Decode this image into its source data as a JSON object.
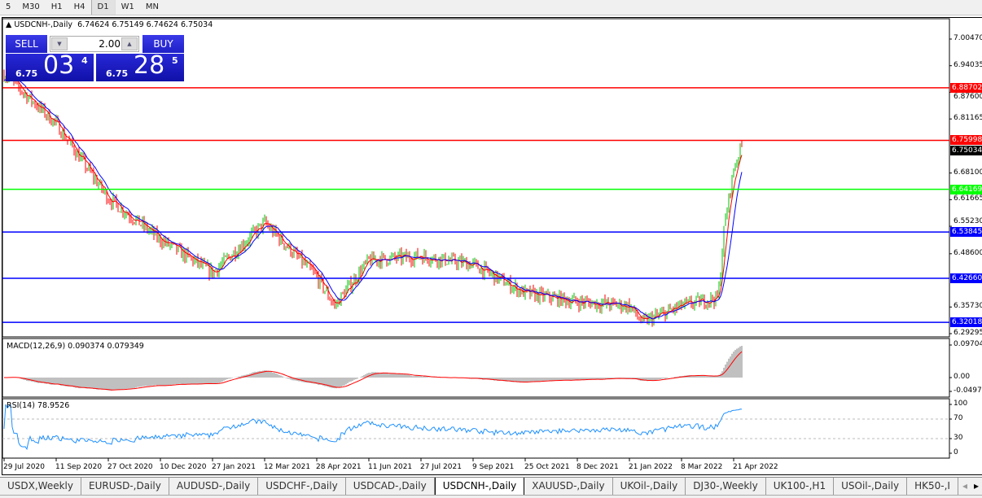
{
  "timeframes": [
    "5",
    "M30",
    "H1",
    "H4",
    "D1",
    "W1",
    "MN"
  ],
  "active_timeframe": "D1",
  "chart": {
    "title": "USDCNH-,Daily",
    "ohlc": "6.74624 6.75149 6.74624 6.75034"
  },
  "one_click": {
    "sell": "SELL",
    "buy": "BUY",
    "lot": "2.00",
    "sell_price": {
      "prefix": "6.75",
      "big": "03",
      "sup": "4"
    },
    "buy_price": {
      "prefix": "6.75",
      "big": "28",
      "sup": "5"
    }
  },
  "price_scale": [
    "7.00470",
    "6.94035",
    "6.87600",
    "6.81165",
    "6.68100",
    "6.61665",
    "6.55230",
    "6.48600",
    "6.35730",
    "6.29295"
  ],
  "current_price": "6.75034",
  "hlines": [
    {
      "price": "6.88702",
      "color": "#ff0000"
    },
    {
      "price": "6.75998",
      "color": "#ff0000"
    },
    {
      "price": "6.64169",
      "color": "#00ff00"
    },
    {
      "price": "6.53845",
      "color": "#0000ff"
    },
    {
      "price": "6.42660",
      "color": "#0000ff"
    },
    {
      "price": "6.32018",
      "color": "#0000ff"
    }
  ],
  "macd": {
    "label": "MACD(12,26,9) 0.090374 0.079349",
    "scale": [
      "0.097045",
      "0.00",
      "-0.04972"
    ]
  },
  "rsi": {
    "label": "RSI(14) 78.9526",
    "scale": [
      "100",
      "70",
      "30",
      "0"
    ]
  },
  "x_labels": [
    "29 Jul 2020",
    "11 Sep 2020",
    "27 Oct 2020",
    "10 Dec 2020",
    "27 Jan 2021",
    "12 Mar 2021",
    "28 Apr 2021",
    "11 Jun 2021",
    "27 Jul 2021",
    "9 Sep 2021",
    "25 Oct 2021",
    "8 Dec 2021",
    "21 Jan 2022",
    "8 Mar 2022",
    "21 Apr 2022"
  ],
  "chart_data": {
    "type": "candlestick",
    "approx_close": [
      [
        "29 Jul 2020",
        6.92
      ],
      [
        "11 Sep 2020",
        6.8
      ],
      [
        "27 Oct 2020",
        6.62
      ],
      [
        "10 Dec 2020",
        6.52
      ],
      [
        "27 Jan 2021",
        6.44
      ],
      [
        "12 Mar 2021",
        6.56
      ],
      [
        "28 Apr 2021",
        6.43
      ],
      [
        "13 May 2021",
        6.36
      ],
      [
        "11 Jun 2021",
        6.47
      ],
      [
        "27 Jul 2021",
        6.48
      ],
      [
        "9 Sep 2021",
        6.46
      ],
      [
        "25 Oct 2021",
        6.39
      ],
      [
        "8 Dec 2021",
        6.37
      ],
      [
        "21 Jan 2022",
        6.36
      ],
      [
        "1 Feb 2022",
        6.32
      ],
      [
        "8 Mar 2022",
        6.36
      ],
      [
        "8 Apr 2022",
        6.38
      ],
      [
        "13 Apr 2022",
        6.55
      ],
      [
        "21 Apr 2022",
        6.69
      ],
      [
        "28 Apr 2022",
        6.75
      ]
    ],
    "y_range": [
      6.29295,
      7.0047
    ],
    "moving_averages": {
      "fast_color": "#ff0000",
      "slow_color": "#0000ff"
    },
    "colors": {
      "up": "#00c000",
      "down": "#ff0000",
      "macd_hist": "#c0c0c0",
      "macd_signal": "#ff0000",
      "rsi": "#1e90ff"
    }
  },
  "tabs": [
    "USDX,Weekly",
    "EURUSD-,Daily",
    "AUDUSD-,Daily",
    "USDCHF-,Daily",
    "USDCAD-,Daily",
    "USDCNH-,Daily",
    "XAUUSD-,Daily",
    "UKOil-,Daily",
    "DJ30-,Weekly",
    "UK100-,H1",
    "USOil-,Daily",
    "HK50-,I"
  ],
  "active_tab": "USDCNH-,Daily"
}
